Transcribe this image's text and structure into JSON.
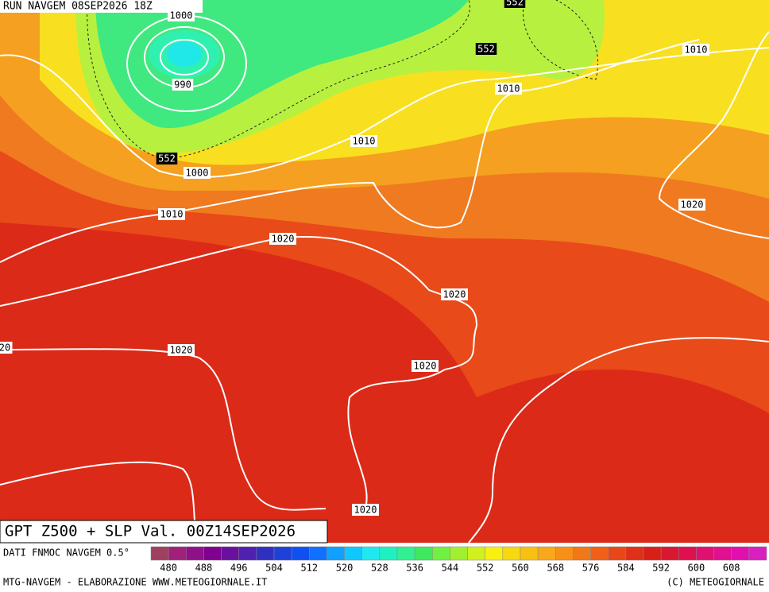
{
  "header": {
    "run": "RUN NAVGEM 08SEP2026 18Z"
  },
  "contour_labels": [
    "1000",
    "990",
    "552",
    "552",
    "1010",
    "1010",
    "1010",
    "552",
    "1000",
    "1010",
    "1020",
    "1020",
    "1020",
    "20",
    "1020",
    "1020",
    "1020"
  ],
  "footer": {
    "title": "GPT Z500 + SLP Val. 00Z14SEP2026",
    "source": "DATI FNMOC NAVGEM 0.5°",
    "credit": "MTG-NAVGEM - ELABORAZIONE WWW.METEOGIORNALE.IT",
    "copyright": "(C) METEOGIORNALE"
  },
  "colorbar": {
    "labels": [
      480,
      488,
      496,
      504,
      512,
      520,
      528,
      536,
      544,
      552,
      560,
      568,
      576,
      584,
      592,
      600,
      608
    ],
    "colors": [
      "#a04060",
      "#a0207a",
      "#90108a",
      "#800090",
      "#6a10a0",
      "#5020b0",
      "#3030c0",
      "#2040d8",
      "#1050f0",
      "#1070ff",
      "#10a0ff",
      "#10c8ff",
      "#20e8f0",
      "#20f0c0",
      "#30f090",
      "#40e860",
      "#70f040",
      "#a0f030",
      "#d0f020",
      "#f8f010",
      "#f8d810",
      "#f8c010",
      "#f8a818",
      "#f89018",
      "#f07818",
      "#f06018",
      "#e84818",
      "#e03018",
      "#d82018",
      "#d81830",
      "#e01050",
      "#e01070",
      "#e01090",
      "#e010b0",
      "#d820c0"
    ]
  }
}
